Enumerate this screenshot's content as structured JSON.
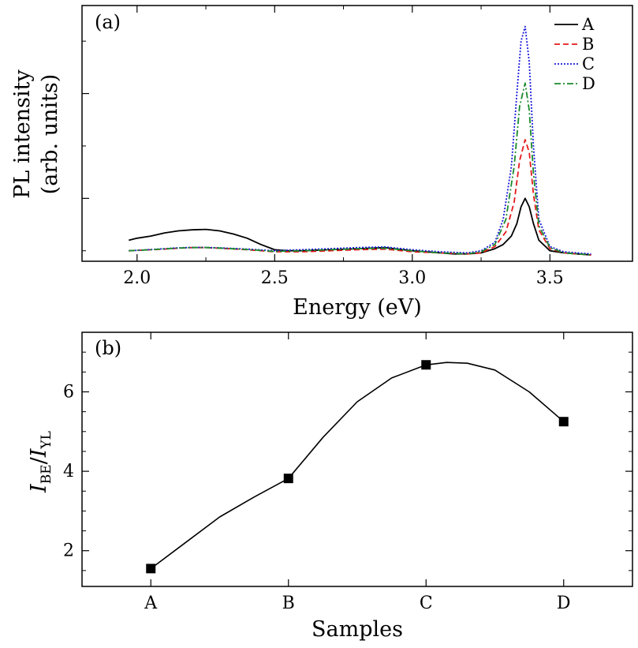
{
  "chart_data": [
    {
      "panel": "(a)",
      "type": "line",
      "xlabel": "Energy (eV)",
      "ylabel": "PL intensity (arb. units)",
      "ylabel_lines": [
        "PL intensity",
        "(arb. units)"
      ],
      "xlim": [
        1.8,
        3.8
      ],
      "ylim": [
        0,
        1.22
      ],
      "xticks": [
        2.0,
        2.5,
        3.0,
        3.5
      ],
      "xtick_labels": [
        "2.0",
        "2.5",
        "3.0",
        "3.5"
      ],
      "yticks_major": [
        0.3,
        0.8,
        1.3
      ],
      "yticks_minor": [
        0.05,
        0.55,
        1.05
      ],
      "show_y_tick_labels": false,
      "legend_position": "top-right",
      "series": [
        {
          "name": "A",
          "color": "#000000",
          "dash": "none",
          "x": [
            1.97,
            2.0,
            2.05,
            2.1,
            2.15,
            2.2,
            2.25,
            2.3,
            2.35,
            2.4,
            2.45,
            2.5,
            2.55,
            2.6,
            2.7,
            2.8,
            2.9,
            3.0,
            3.05,
            3.1,
            3.15,
            3.2,
            3.25,
            3.3,
            3.33,
            3.36,
            3.38,
            3.395,
            3.41,
            3.425,
            3.44,
            3.46,
            3.5,
            3.55,
            3.6,
            3.65
          ],
          "y": [
            0.1,
            0.11,
            0.12,
            0.135,
            0.145,
            0.15,
            0.152,
            0.145,
            0.13,
            0.11,
            0.08,
            0.055,
            0.05,
            0.05,
            0.055,
            0.06,
            0.065,
            0.05,
            0.045,
            0.04,
            0.035,
            0.035,
            0.04,
            0.06,
            0.08,
            0.12,
            0.18,
            0.26,
            0.3,
            0.26,
            0.18,
            0.1,
            0.05,
            0.04,
            0.035,
            0.03
          ]
        },
        {
          "name": "B",
          "color": "#e41a1c",
          "dash": "7,4",
          "x": [
            1.97,
            2.0,
            2.05,
            2.1,
            2.15,
            2.2,
            2.25,
            2.3,
            2.4,
            2.5,
            2.6,
            2.7,
            2.8,
            2.9,
            3.0,
            3.1,
            3.2,
            3.25,
            3.3,
            3.34,
            3.37,
            3.39,
            3.41,
            3.425,
            3.44,
            3.46,
            3.5,
            3.55,
            3.6,
            3.65
          ],
          "y": [
            0.05,
            0.052,
            0.055,
            0.058,
            0.062,
            0.065,
            0.065,
            0.062,
            0.055,
            0.045,
            0.045,
            0.05,
            0.055,
            0.058,
            0.045,
            0.04,
            0.035,
            0.04,
            0.07,
            0.14,
            0.28,
            0.48,
            0.58,
            0.52,
            0.32,
            0.15,
            0.06,
            0.04,
            0.035,
            0.03
          ]
        },
        {
          "name": "C",
          "color": "#1a1adb",
          "dash": "2,2",
          "x": [
            1.97,
            2.0,
            2.05,
            2.1,
            2.15,
            2.2,
            2.25,
            2.3,
            2.4,
            2.5,
            2.6,
            2.7,
            2.8,
            2.9,
            3.0,
            3.1,
            3.2,
            3.25,
            3.3,
            3.33,
            3.36,
            3.38,
            3.395,
            3.41,
            3.425,
            3.44,
            3.46,
            3.5,
            3.55,
            3.6,
            3.65
          ],
          "y": [
            0.05,
            0.052,
            0.056,
            0.06,
            0.064,
            0.066,
            0.066,
            0.064,
            0.058,
            0.05,
            0.055,
            0.06,
            0.065,
            0.068,
            0.055,
            0.045,
            0.04,
            0.05,
            0.09,
            0.2,
            0.45,
            0.8,
            1.05,
            1.12,
            0.95,
            0.55,
            0.2,
            0.07,
            0.045,
            0.04,
            0.035
          ]
        },
        {
          "name": "D",
          "color": "#1b8a2e",
          "dash": "8,3,2,3",
          "x": [
            1.97,
            2.0,
            2.05,
            2.1,
            2.15,
            2.2,
            2.25,
            2.3,
            2.4,
            2.5,
            2.6,
            2.7,
            2.8,
            2.9,
            3.0,
            3.1,
            3.2,
            3.25,
            3.3,
            3.34,
            3.37,
            3.39,
            3.41,
            3.425,
            3.44,
            3.46,
            3.5,
            3.55,
            3.6,
            3.65
          ],
          "y": [
            0.05,
            0.052,
            0.055,
            0.059,
            0.063,
            0.065,
            0.065,
            0.063,
            0.056,
            0.047,
            0.05,
            0.055,
            0.06,
            0.062,
            0.05,
            0.04,
            0.035,
            0.045,
            0.08,
            0.2,
            0.45,
            0.74,
            0.85,
            0.72,
            0.42,
            0.17,
            0.065,
            0.04,
            0.035,
            0.03
          ]
        }
      ]
    },
    {
      "panel": "(b)",
      "type": "scatter",
      "xlabel": "Samples",
      "ylabel": "I_BE/I_YL",
      "ylabel_parts": {
        "i1": "I",
        "sub1": "BE",
        "slash": "/",
        "i2": "I",
        "sub2": "YL"
      },
      "categories": [
        "A",
        "B",
        "C",
        "D"
      ],
      "values": [
        1.55,
        3.82,
        6.68,
        5.25
      ],
      "xlim": [
        -0.5,
        3.5
      ],
      "ylim": [
        1.1,
        7.5
      ],
      "yticks_major": [
        2,
        4,
        6
      ],
      "ytick_labels": [
        "2",
        "4",
        "6"
      ],
      "yticks_minor": [
        1.5,
        2.5,
        3,
        3.5,
        4.5,
        5,
        5.5,
        6.5,
        7,
        7.5
      ],
      "fit_curve": {
        "x": [
          0,
          0.25,
          0.5,
          0.75,
          1.0,
          1.25,
          1.5,
          1.75,
          2.0,
          2.15,
          2.3,
          2.5,
          2.75,
          3.0
        ],
        "y": [
          1.55,
          2.2,
          2.85,
          3.35,
          3.82,
          4.85,
          5.75,
          6.35,
          6.68,
          6.74,
          6.72,
          6.55,
          6.0,
          5.25
        ]
      }
    }
  ]
}
